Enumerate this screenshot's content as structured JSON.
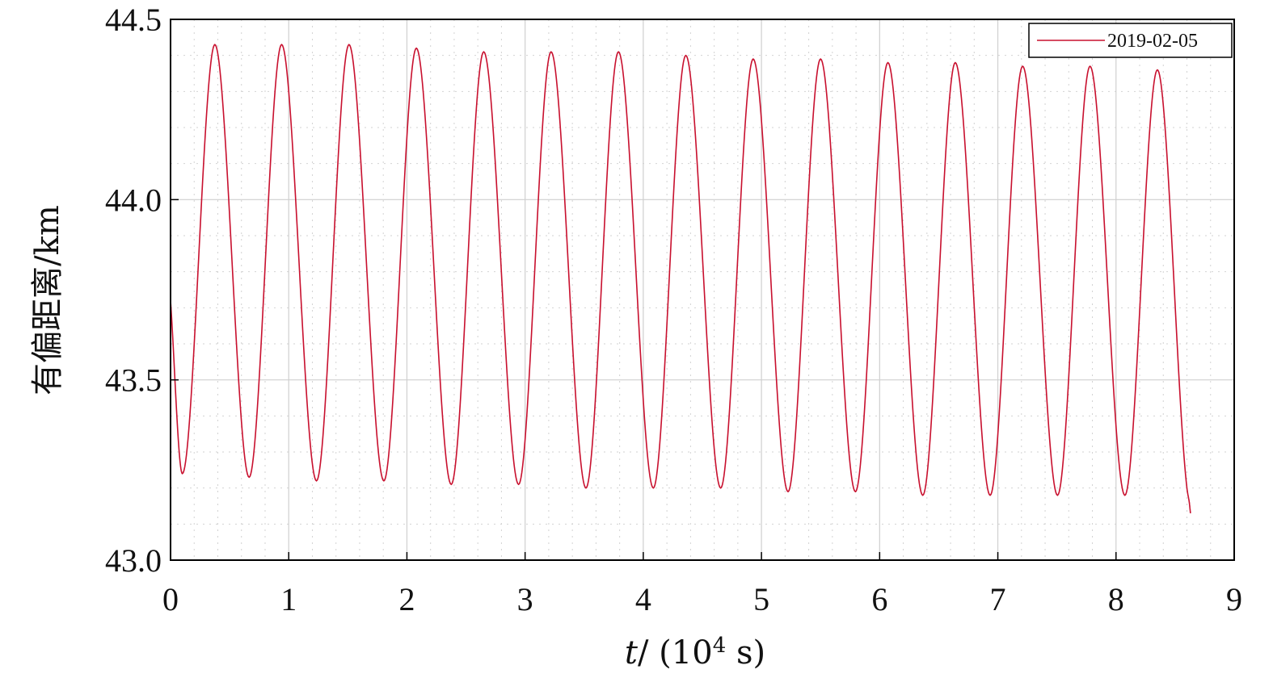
{
  "chart_data": {
    "type": "line",
    "xlabel": {
      "var": "t",
      "rest": "/ (10",
      "exp": "4",
      "unit": " s)"
    },
    "ylabel": "有偏距离/km",
    "xlim": [
      0,
      9
    ],
    "ylim": [
      43.0,
      44.5
    ],
    "x_ticks": [
      "0",
      "1",
      "2",
      "3",
      "4",
      "5",
      "6",
      "7",
      "8",
      "9"
    ],
    "y_ticks": [
      "43.0",
      "43.5",
      "44.0",
      "44.5"
    ],
    "grid": true,
    "legend_position": "top-right",
    "series": [
      {
        "name": "2019-02-05",
        "color": "#c8102e",
        "x": [
          0.0,
          0.1,
          0.375,
          0.665,
          0.94,
          1.235,
          1.51,
          1.805,
          2.08,
          2.375,
          2.65,
          2.945,
          3.22,
          3.515,
          3.79,
          4.085,
          4.36,
          4.655,
          4.93,
          5.225,
          5.5,
          5.795,
          6.07,
          6.365,
          6.64,
          6.935,
          7.21,
          7.505,
          7.78,
          8.075,
          8.35,
          8.6,
          8.62,
          8.63
        ],
        "y": [
          43.72,
          43.24,
          44.43,
          43.23,
          44.43,
          43.22,
          44.43,
          43.22,
          44.42,
          43.21,
          44.41,
          43.21,
          44.41,
          43.2,
          44.41,
          43.2,
          44.4,
          43.2,
          44.39,
          43.19,
          44.39,
          43.19,
          44.38,
          43.18,
          44.38,
          43.18,
          44.37,
          43.18,
          44.37,
          43.18,
          44.36,
          43.2,
          43.16,
          43.13
        ]
      }
    ]
  }
}
